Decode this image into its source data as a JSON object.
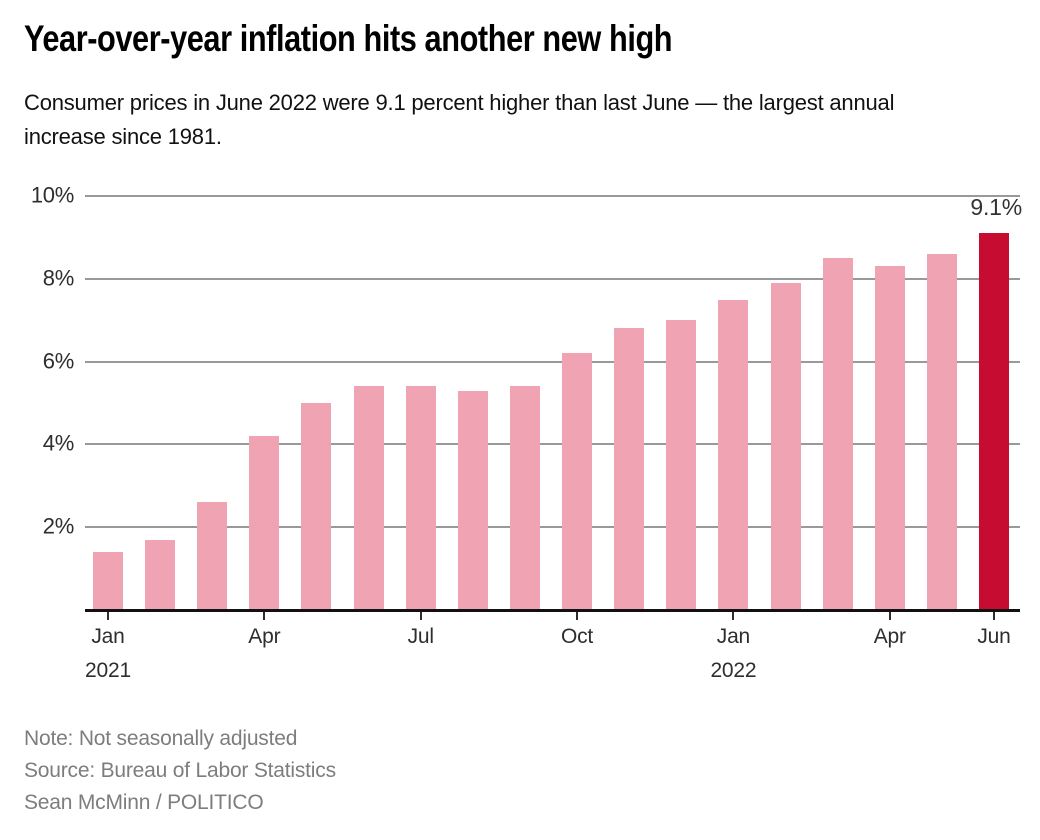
{
  "header": {
    "title": "Year-over-year inflation hits another new high",
    "subtitle": "Consumer prices in June 2022 were 9.1 percent higher than last June — the largest annual increase since 1981."
  },
  "chart_data": {
    "type": "bar",
    "title": "Year-over-year inflation hits another new high",
    "categories": [
      "Jan 2021",
      "Feb 2021",
      "Mar 2021",
      "Apr 2021",
      "May 2021",
      "Jun 2021",
      "Jul 2021",
      "Aug 2021",
      "Sep 2021",
      "Oct 2021",
      "Nov 2021",
      "Dec 2021",
      "Jan 2022",
      "Feb 2022",
      "Mar 2022",
      "Apr 2022",
      "May 2022",
      "Jun 2022"
    ],
    "values": [
      1.4,
      1.7,
      2.6,
      4.2,
      5.0,
      5.4,
      5.4,
      5.3,
      5.4,
      6.2,
      6.8,
      7.0,
      7.5,
      7.9,
      8.5,
      8.3,
      8.6,
      9.1
    ],
    "unit": "%",
    "ylim": [
      0,
      10
    ],
    "yticks": [
      2,
      4,
      6,
      8,
      10
    ],
    "ytick_suffix": "%",
    "grid": true,
    "xticks": [
      {
        "index": 0,
        "label": "Jan",
        "year": "2021"
      },
      {
        "index": 3,
        "label": "Apr"
      },
      {
        "index": 6,
        "label": "Jul"
      },
      {
        "index": 9,
        "label": "Oct"
      },
      {
        "index": 12,
        "label": "Jan",
        "year": "2022"
      },
      {
        "index": 15,
        "label": "Apr"
      },
      {
        "index": 17,
        "label": "Jun"
      }
    ],
    "annotation": {
      "label": "9.1%",
      "bar_index": 17
    },
    "colors": {
      "bar": "#f0a3b2",
      "highlight": "#c60c30",
      "highlight_index": 17,
      "gridline": "#999999",
      "axis": "#111111",
      "tick": "#2e2e2e",
      "axis_label": "#2e2e2e",
      "annotation": "#333333"
    }
  },
  "footer": {
    "note": "Note: Not seasonally adjusted",
    "source": "Source: Bureau of Labor Statistics",
    "credit": "Sean McMinn / POLITICO"
  }
}
